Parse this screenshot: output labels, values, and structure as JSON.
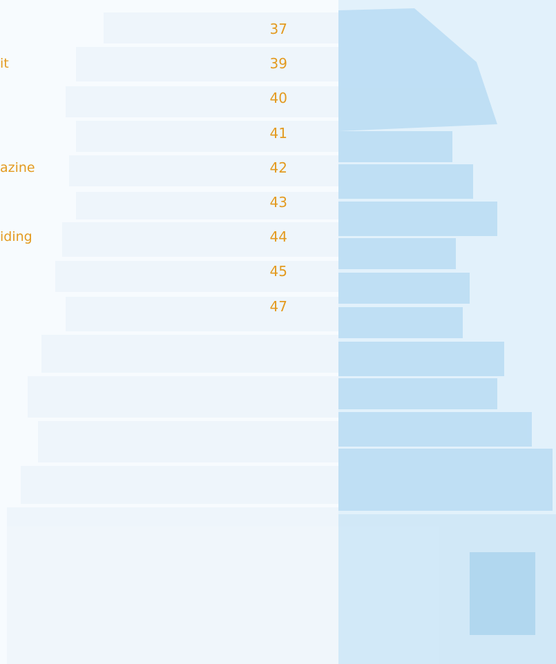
{
  "toc": {
    "entries": [
      {
        "page": 37
      },
      {
        "label": "it",
        "page": 39
      },
      {
        "page": 40
      },
      {
        "page": 41
      },
      {
        "label": "azine",
        "page": 42
      },
      {
        "page": 43
      },
      {
        "label": "iding",
        "page": 44
      },
      {
        "page": 45
      },
      {
        "page": 47
      }
    ]
  }
}
